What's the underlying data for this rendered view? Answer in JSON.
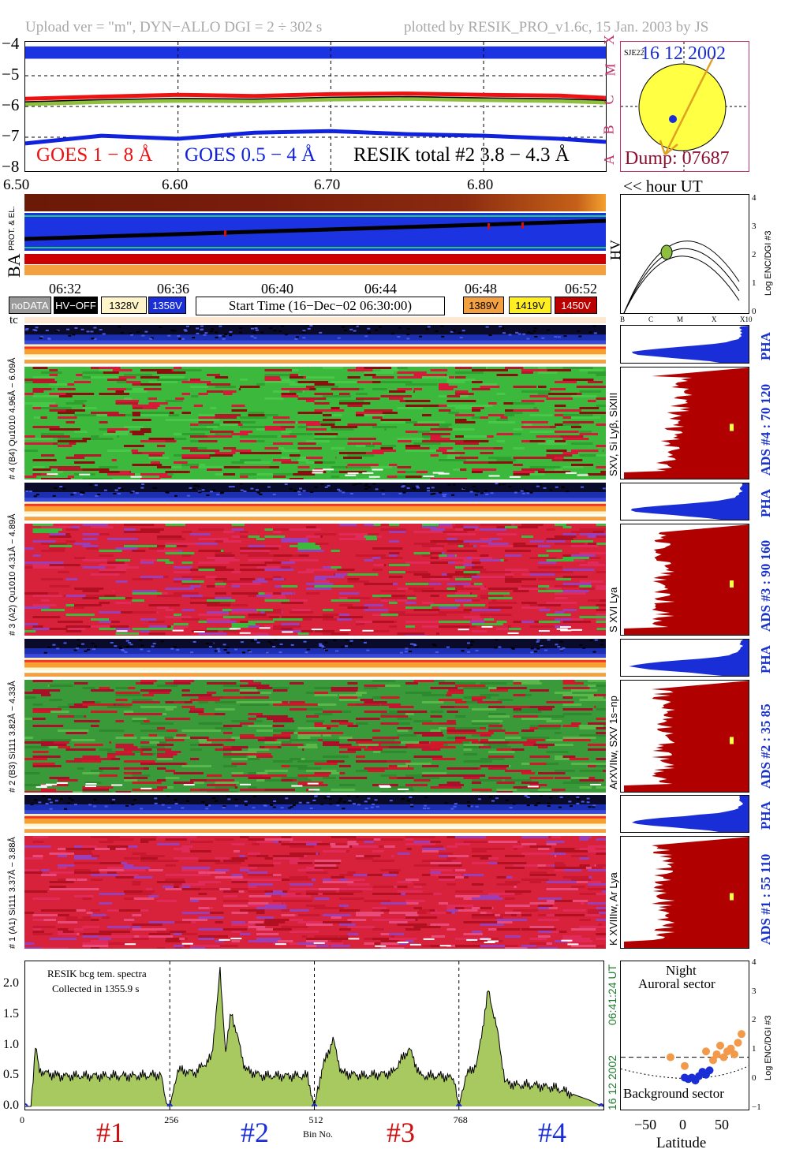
{
  "header": {
    "left": "Upload ver = \"m\", DYN−ALLO DGI =   2 ÷ 302 s",
    "right": "plotted by RESIK_PRO_v1.6c, 15 Jan. 2003 by JS"
  },
  "goes_panel": {
    "y_ticks": [
      "−4",
      "−5",
      "−6",
      "−7",
      "−8"
    ],
    "class_letters": [
      "X",
      "M",
      "C",
      "B",
      "A"
    ],
    "legend_goes18": "GOES 1 − 8 Å",
    "legend_goes054": "GOES 0.5 − 4 Å",
    "legend_resik": "RESIK total #2  3.8 − 4.3 Å",
    "colors": {
      "goes18": "#ee1111",
      "goes054": "#1122dd",
      "resik": "#000000",
      "band": "#1b33e0"
    }
  },
  "sun_panel": {
    "date": "16 12 2002",
    "label_tiny": "SJE22",
    "dump": "Dump: 07687"
  },
  "ba_panel": {
    "hour_ticks": [
      "6.50",
      "6.60",
      "6.70",
      "6.80"
    ],
    "hour_unit": "<< hour UT",
    "side_label": "BA",
    "sub_label": "PROT. & EL."
  },
  "hv_panel": {
    "label": "HV",
    "y_ticks": [
      "4",
      "3",
      "2",
      "1",
      "0"
    ],
    "x_ticks": [
      "B",
      "C",
      "M",
      "X",
      "X10"
    ],
    "ylabel": "Log ENC/DGI #3"
  },
  "time_axis": {
    "ticks": [
      "06:32",
      "06:36",
      "06:40",
      "06:44",
      "06:48",
      "06:52"
    ],
    "start_time": "Start Time (16−Dec−02 06:30:00)",
    "tc": "tc"
  },
  "hv_legend": [
    {
      "label": "noDATA",
      "bg": "#9a9a9a",
      "fg": "#ffffff"
    },
    {
      "label": "HV−OFF",
      "bg": "#000000",
      "fg": "#ffffff"
    },
    {
      "label": "1328V",
      "bg": "#fff5c8",
      "fg": "#000000"
    },
    {
      "label": "1358V",
      "bg": "#1a2ed8",
      "fg": "#ffffff"
    },
    {
      "label": "1389V",
      "bg": "#f2a040",
      "fg": "#000000"
    },
    {
      "label": "1419V",
      "bg": "#ffee22",
      "fg": "#000000"
    },
    {
      "label": "1450V",
      "bg": "#bb0000",
      "fg": "#ffffff"
    }
  ],
  "channels": [
    {
      "id": "#4",
      "dyn_label": "# 4 (B4) Qu1010 4.96Å − 6.09Å",
      "lines": "SXV, Si Lyβ, SiXIII",
      "ads": "ADS #4 :   70 120",
      "pha": "PHA"
    },
    {
      "id": "#3",
      "dyn_label": "# 3 (A2) Qu1010 4.31Å − 4.89Å",
      "lines": "S XVI Lya",
      "ads": "ADS #3 :   90 160",
      "pha": "PHA"
    },
    {
      "id": "#2",
      "dyn_label": "# 2 (B3) Si111 3.82Å − 4.33Å",
      "lines": "ArXVIIw, SXV 1s−np",
      "ads": "ADS #2 :   35 85",
      "pha": "PHA"
    },
    {
      "id": "#1",
      "dyn_label": "# 1 (A1) Si111 3.37Å − 3.88Å",
      "lines": "K XVIIIw, Ar Lya",
      "ads": "ADS #1 :   55 110",
      "pha": "PHA"
    }
  ],
  "spectrum_panel": {
    "note_line1": "RESIK bcg tem. spectra",
    "note_line2": "Collected in  1355.9 s",
    "xlabel": "Bin No.",
    "x_ticks": [
      "0",
      "256",
      "512",
      "768"
    ],
    "y_ticks": [
      "2.0",
      "1.5",
      "1.0",
      "0.5",
      "0.0"
    ],
    "side_date": "16 12 2002",
    "side_time": "06:41:24 UT",
    "peak_labels": [
      {
        "text": "#1",
        "color": "#cc1111"
      },
      {
        "text": "#2",
        "color": "#1a2ed8"
      },
      {
        "text": "#3",
        "color": "#cc1111"
      },
      {
        "text": "#4",
        "color": "#1a2ed8"
      }
    ]
  },
  "latitude_panel": {
    "title1": "Night",
    "title2": "Auroral sector",
    "bottom": "Background sector",
    "xlabel": "Latitude",
    "x_ticks": [
      "−50",
      "0",
      "50"
    ],
    "y_ticks": [
      "4",
      "3",
      "2",
      "1",
      "0",
      "−1"
    ],
    "ylabel": "Log ENC/DGI #3"
  },
  "chart_data": [
    {
      "type": "line",
      "title": "",
      "ylabel": "",
      "ylim": [
        -8.1,
        -3.9
      ],
      "x_range_hours": [
        6.5,
        6.88
      ],
      "series": [
        {
          "name": "GOES 1 − 8 Å",
          "x": [
            6.5,
            6.55,
            6.6,
            6.65,
            6.7,
            6.75,
            6.8,
            6.85,
            6.88
          ],
          "values": [
            -5.75,
            -5.68,
            -5.62,
            -5.66,
            -5.6,
            -5.58,
            -5.62,
            -5.65,
            -5.72
          ]
        },
        {
          "name": "GOES 0.5 − 4 Å",
          "x": [
            6.5,
            6.55,
            6.6,
            6.65,
            6.7,
            6.75,
            6.8,
            6.85,
            6.88
          ],
          "values": [
            -7.2,
            -6.95,
            -7.05,
            -6.85,
            -6.8,
            -6.9,
            -6.95,
            -7.05,
            -7.15
          ]
        },
        {
          "name": "RESIK total #2  3.8 − 4.3 Å",
          "x": [
            6.5,
            6.55,
            6.6,
            6.65,
            6.7,
            6.75,
            6.8,
            6.85,
            6.88
          ],
          "values": [
            -5.85,
            -5.78,
            -5.74,
            -5.76,
            -5.7,
            -5.68,
            -5.72,
            -5.75,
            -5.8
          ]
        }
      ]
    },
    {
      "type": "area",
      "title": "",
      "xlabel": "Bin No.",
      "xlim": [
        0,
        1024
      ],
      "ylim": [
        0,
        2.3
      ],
      "series": [
        {
          "name": "",
          "x": [
            0,
            10,
            18,
            25,
            35,
            60,
            120,
            200,
            240,
            250,
            256,
            270,
            300,
            330,
            345,
            355,
            365,
            390,
            420,
            470,
            500,
            512,
            525,
            545,
            560,
            600,
            650,
            680,
            700,
            740,
            760,
            768,
            780,
            800,
            820,
            835,
            850,
            870,
            900,
            940,
            1000,
            1010,
            1024
          ],
          "values": [
            0,
            0,
            0.98,
            0.6,
            0.55,
            0.5,
            0.5,
            0.5,
            0.52,
            0.05,
            0,
            0.6,
            0.55,
            0.8,
            2.2,
            0.9,
            1.55,
            0.6,
            0.5,
            0.5,
            0.5,
            0,
            0.6,
            1.1,
            0.55,
            0.5,
            0.55,
            0.95,
            0.5,
            0.5,
            0.45,
            0,
            0.5,
            0.7,
            1.9,
            1.3,
            0.4,
            0.35,
            0.35,
            0.3,
            0.1,
            0.05,
            0
          ]
        }
      ]
    },
    {
      "type": "scatter",
      "title": "",
      "xlabel": "Latitude",
      "ylabel": "Log ENC/DGI #3",
      "xlim": [
        -90,
        90
      ],
      "ylim": [
        -1,
        4.1
      ],
      "series": [
        {
          "name": "Auroral sector",
          "x": [
            -20,
            0,
            30,
            40,
            45,
            50,
            55,
            60,
            65,
            70,
            75,
            80
          ],
          "values": [
            0.8,
            0.5,
            1.0,
            0.7,
            0.9,
            1.2,
            0.8,
            1.0,
            1.1,
            0.9,
            1.3,
            1.6
          ]
        },
        {
          "name": "Background sector",
          "x": [
            0,
            5,
            10,
            15,
            20,
            25,
            30,
            35
          ],
          "values": [
            0.1,
            0.05,
            0.1,
            0.0,
            0.15,
            0.3,
            0.2,
            0.35
          ]
        }
      ]
    }
  ]
}
